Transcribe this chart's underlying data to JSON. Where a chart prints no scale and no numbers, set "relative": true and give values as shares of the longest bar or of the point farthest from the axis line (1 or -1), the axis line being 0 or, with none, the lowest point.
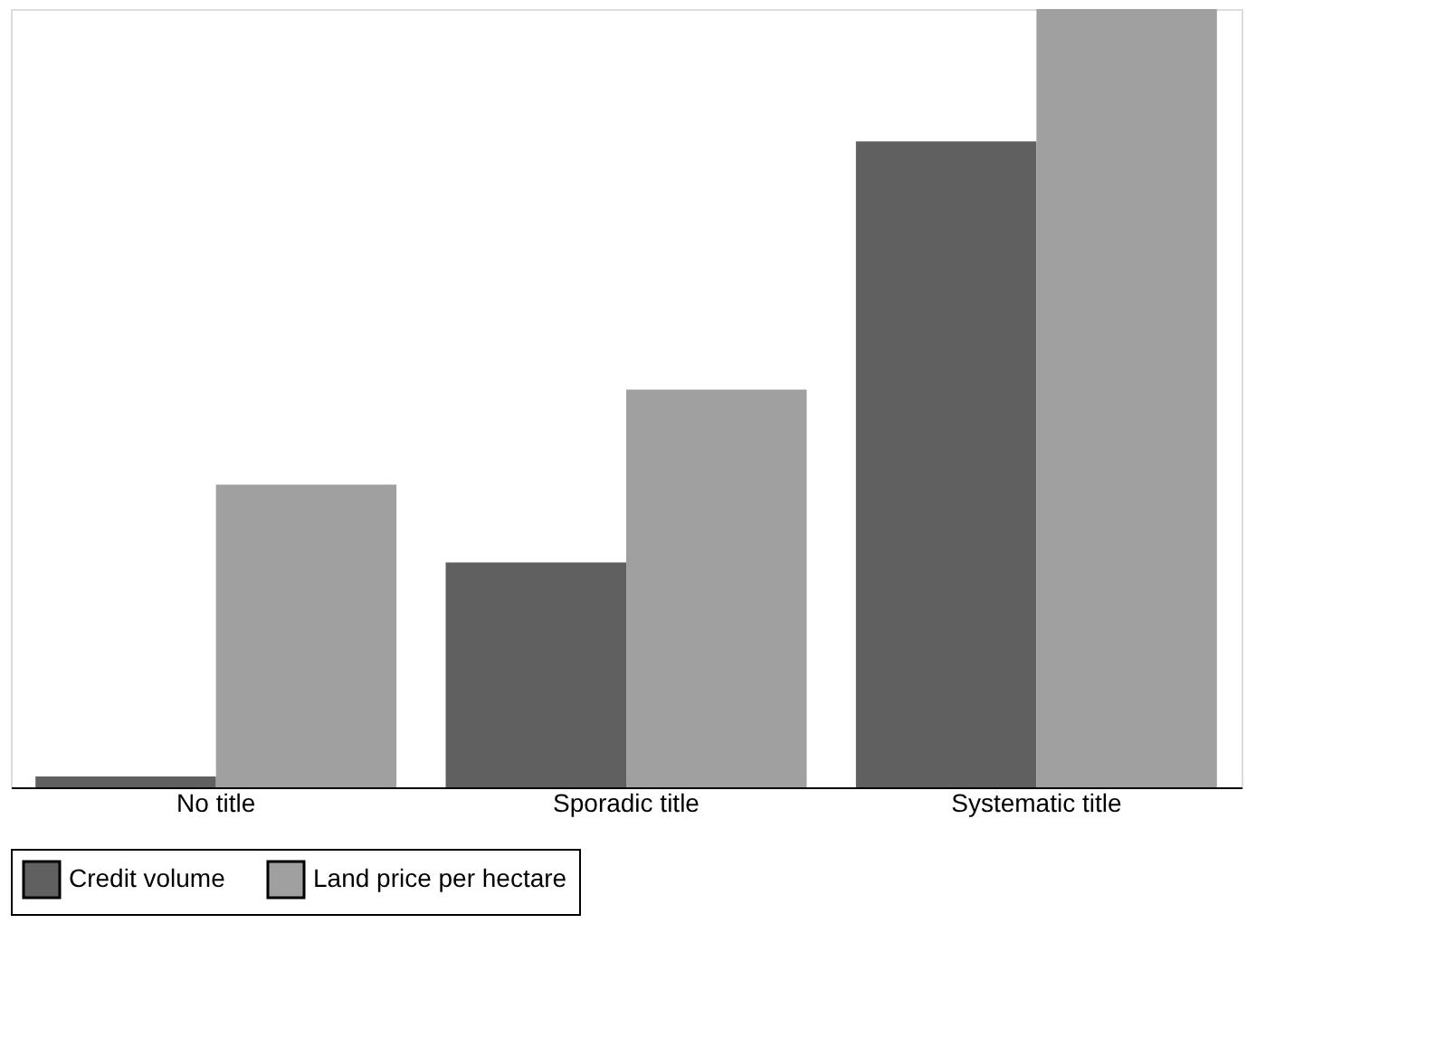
{
  "chart_data": {
    "type": "bar",
    "relative": true,
    "categories": [
      "No title",
      "Sporadic title",
      "Systematic title"
    ],
    "series": [
      {
        "name": "Credit volume",
        "color": "#606060",
        "values": [
          0.014,
          0.289,
          0.83
        ]
      },
      {
        "name": "Land price per hectare",
        "color": "#a0a0a0",
        "values": [
          0.389,
          0.511,
          1.0
        ]
      }
    ],
    "legend": "bottom"
  }
}
